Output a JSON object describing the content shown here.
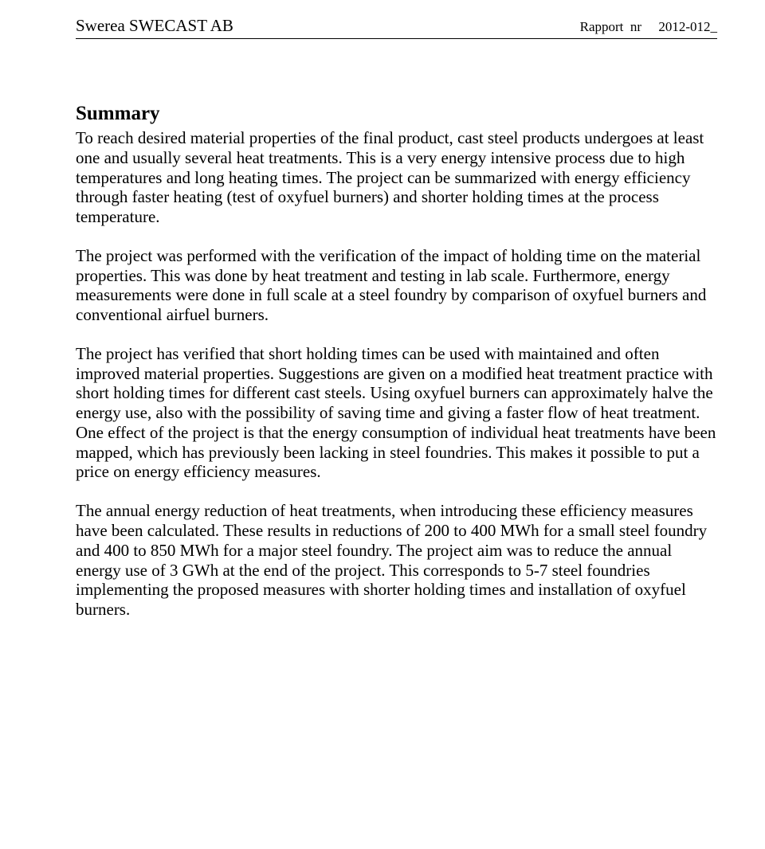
{
  "header": {
    "org": "Swerea SWECAST AB",
    "report_label": "Rapport  nr",
    "report_no": "2012-012_"
  },
  "doc": {
    "heading": "Summary",
    "p1": "To reach desired material properties of the final product, cast steel products undergoes at least one and usually several heat treatments. This is a very energy intensive process due to high temperatures and long heating times. The project can be summarized with energy efficiency through faster heating (test of oxyfuel burners) and shorter holding times at the process temperature.",
    "p2": "The project was performed with the verification of the impact of holding time on the material properties. This was done by heat treatment and testing in lab scale. Furthermore, energy measurements were done in full scale at a steel foundry by comparison of oxyfuel burners and conventional airfuel burners.",
    "p3": "The project has verified that short holding times can be used with maintained and often improved material properties. Suggestions are given on a modified heat treatment practice with short holding times for different cast steels. Using oxyfuel burners can approximately halve the energy use, also with the possibility of saving time and giving a faster flow of heat treatment. One effect of the project is that the energy consumption of individual heat treatments have been mapped, which has previously been lacking in steel foundries. This makes it possible to put a price on energy efficiency measures.",
    "p4": "The annual energy reduction of heat treatments, when introducing these efficiency measures have been calculated. These results in reductions of 200 to 400 MWh for a small steel foundry and 400 to 850 MWh for a major steel foundry. The project aim was to reduce the annual energy use of 3 GWh at the end of the project. This corresponds to 5-7 steel foundries implementing the proposed measures with shorter holding times and installation of oxyfuel burners."
  }
}
